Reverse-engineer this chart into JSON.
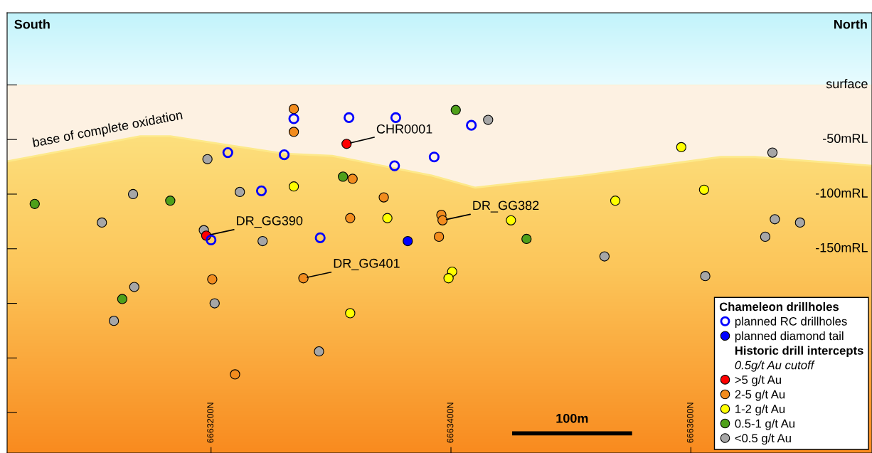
{
  "chart_data": {
    "type": "scatter",
    "xlim": [
      6663030,
      6663751
    ],
    "ylim": [
      -337,
      66
    ],
    "xticks": [
      {
        "value": 6663200,
        "label": "6663200N"
      },
      {
        "value": 6663400,
        "label": "6663400N"
      },
      {
        "value": 6663600,
        "label": "6663600N"
      }
    ],
    "yticks": [
      {
        "value": 0,
        "label": "surface"
      },
      {
        "value": -50,
        "label": "-50mRL"
      },
      {
        "value": -100,
        "label": "-100mRL"
      },
      {
        "value": -150,
        "label": "-150mRL"
      },
      {
        "value": -200,
        "label": null
      },
      {
        "value": -250,
        "label": null
      },
      {
        "value": -300,
        "label": null
      }
    ],
    "grid": false,
    "legend": "bottom right",
    "legend_title": "Chameleon drillholes",
    "annotations": [
      "South",
      "North",
      "Historic drill intercepts",
      "0.5g/t Au cutoff",
      "100m",
      {
        "text": "CHR0001",
        "x": 6663313,
        "y": -54
      },
      {
        "text": "DR_GG390",
        "x": 6663196,
        "y": -138
      },
      {
        "text": "DR_GG382",
        "x": 6663393,
        "y": -124
      },
      {
        "text": "DR_GG401",
        "x": 6663277,
        "y": -177
      }
    ],
    "series": [
      {
        "name": "base of complete oxidation",
        "type": "line",
        "color": "#fde98a",
        "x": [
          6663030,
          6663141,
          6663166,
          6663261,
          6663301,
          6663384,
          6663420,
          6663510,
          6663625,
          6663653,
          6663751
        ],
        "values": [
          -70,
          -47,
          -47,
          -63,
          -65,
          -83,
          -94,
          -83,
          -66,
          -66,
          -74
        ]
      },
      {
        "type": "line",
        "color": "#000000",
        "x": [
          6663451,
          6663551
        ],
        "values": [
          -319,
          -319
        ]
      },
      {
        "name": "planned RC drillholes",
        "type": "scatter",
        "color": "#0000ff",
        "marker": "circle",
        "x": [
          6663269,
          6663315,
          6663354,
          6663417,
          6663214,
          6663261,
          6663386,
          6663353,
          6663242,
          6663200,
          6663291
        ],
        "values": [
          -31,
          -30,
          -30,
          -37,
          -62,
          -64,
          -66,
          -74,
          -97,
          -142,
          -140
        ]
      },
      {
        "name": "planned diamond tail",
        "type": "scatter",
        "color": "#0000ff",
        "marker": "circle",
        "x": [
          6663364
        ],
        "values": [
          -143
        ]
      },
      {
        "name": ">5 g/t Au",
        "type": "scatter",
        "color": "#ff0000",
        "marker": "circle",
        "x": [
          6663313,
          6663196
        ],
        "values": [
          -54,
          -138
        ]
      },
      {
        "name": "2-5 g/t Au",
        "type": "scatter",
        "color": "#f28c1e",
        "marker": "circle",
        "x": [
          6663269,
          6663269,
          6663201,
          6663318,
          6663344,
          6663316,
          6663392,
          6663393,
          6663390,
          6663277,
          6663220
        ],
        "values": [
          -22,
          -43,
          -178,
          -86,
          -103,
          -122,
          -119,
          -124,
          -139,
          -177,
          -265
        ]
      },
      {
        "name": "1-2 g/t Au",
        "type": "scatter",
        "color": "#ffff00",
        "marker": "circle",
        "x": [
          6663269,
          6663347,
          6663450,
          6663401,
          6663398,
          6663316,
          6663592,
          6663611,
          6663537
        ],
        "values": [
          -93,
          -122,
          -124,
          -171,
          -177,
          -209,
          -57,
          -96,
          -106
        ]
      },
      {
        "name": "0.5-1 g/t Au",
        "type": "scatter",
        "color": "#4fa01a",
        "marker": "circle",
        "x": [
          6663053,
          6663166,
          6663126,
          6663310,
          6663404,
          6663463
        ],
        "values": [
          -109,
          -106,
          -196,
          -84,
          -23,
          -141
        ]
      },
      {
        "name": "<0.5 g/t Au",
        "type": "scatter",
        "color": "#a6a6a6",
        "marker": "circle",
        "x": [
          6663197,
          6663135,
          6663224,
          6663109,
          6663194,
          6663243,
          6663136,
          6663119,
          6663203,
          6663431,
          6663668,
          6663670,
          6663691,
          6663662,
          6663528,
          6663612,
          6663290
        ],
        "values": [
          -68,
          -100,
          -98,
          -126,
          -133,
          -143,
          -185,
          -216,
          -200,
          -32,
          -62,
          -123,
          -126,
          -139,
          -157,
          -175,
          -244
        ]
      }
    ]
  }
}
